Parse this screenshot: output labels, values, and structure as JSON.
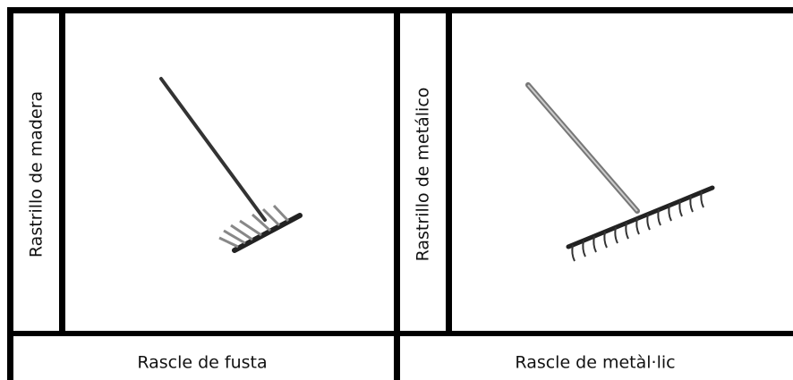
{
  "panels": [
    {
      "side_label": "Rastrillo de madera",
      "caption": "Rascle de fusta"
    },
    {
      "side_label": "Rastrillo de metálico",
      "caption": "Rascle de metàl·lic"
    }
  ]
}
